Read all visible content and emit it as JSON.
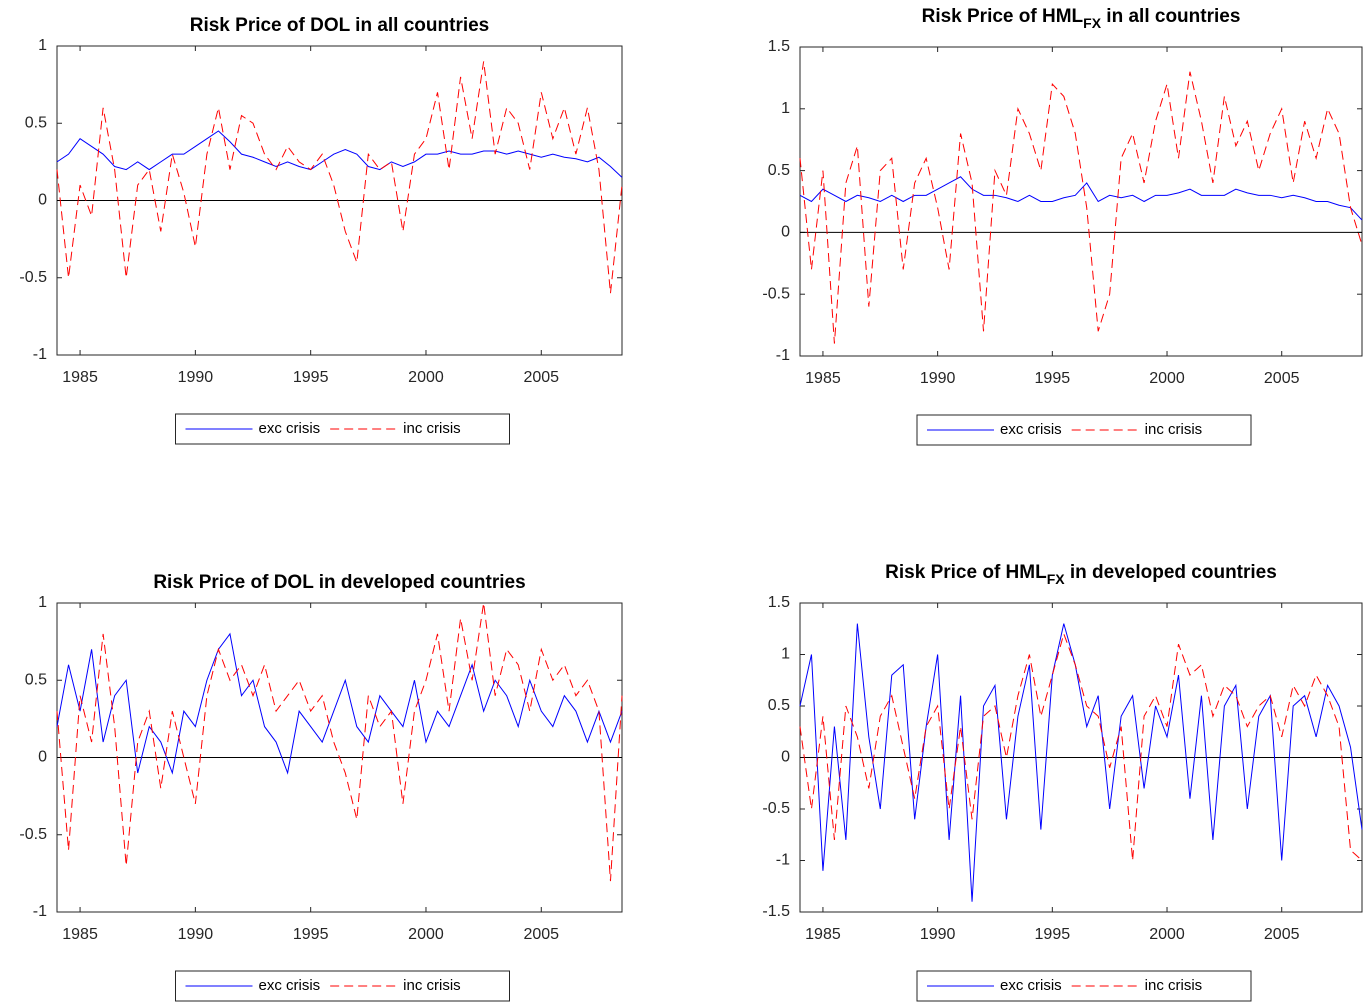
{
  "chart_data": [
    {
      "type": "line",
      "title": "Risk Price of DOL in all countries",
      "x": [
        1984,
        1984.5,
        1985,
        1985.5,
        1986,
        1986.5,
        1987,
        1987.5,
        1988,
        1988.5,
        1989,
        1989.5,
        1990,
        1990.5,
        1991,
        1991.5,
        1992,
        1992.5,
        1993,
        1993.5,
        1994,
        1994.5,
        1995,
        1995.5,
        1996,
        1996.5,
        1997,
        1997.5,
        1998,
        1998.5,
        1999,
        1999.5,
        2000,
        2000.5,
        2001,
        2001.5,
        2002,
        2002.5,
        2003,
        2003.5,
        2004,
        2004.5,
        2005,
        2005.5,
        2006,
        2006.5,
        2007,
        2007.5,
        2008,
        2008.5
      ],
      "xlim": [
        1984,
        2008.5
      ],
      "xticks": [
        1985,
        1990,
        1995,
        2000,
        2005
      ],
      "ylim": [
        -1,
        1
      ],
      "yticks": [
        -1,
        -0.5,
        0,
        0.5,
        1
      ],
      "series": [
        {
          "name": "exc crisis",
          "color": "#0000ff",
          "dash": "solid",
          "values": [
            0.25,
            0.3,
            0.4,
            0.35,
            0.3,
            0.22,
            0.2,
            0.25,
            0.2,
            0.25,
            0.3,
            0.3,
            0.35,
            0.4,
            0.45,
            0.38,
            0.3,
            0.28,
            0.25,
            0.22,
            0.25,
            0.22,
            0.2,
            0.25,
            0.3,
            0.33,
            0.3,
            0.22,
            0.2,
            0.25,
            0.22,
            0.25,
            0.3,
            0.3,
            0.32,
            0.3,
            0.3,
            0.32,
            0.32,
            0.3,
            0.32,
            0.3,
            0.28,
            0.3,
            0.28,
            0.27,
            0.25,
            0.28,
            0.22,
            0.15
          ]
        },
        {
          "name": "inc crisis",
          "color": "#ff0000",
          "dash": "dashed",
          "values": [
            0.2,
            -0.5,
            0.1,
            -0.1,
            0.6,
            0.2,
            -0.5,
            0.1,
            0.2,
            -0.2,
            0.3,
            0.05,
            -0.3,
            0.3,
            0.6,
            0.2,
            0.55,
            0.5,
            0.3,
            0.2,
            0.35,
            0.25,
            0.2,
            0.3,
            0.1,
            -0.2,
            -0.4,
            0.3,
            0.2,
            0.25,
            -0.2,
            0.3,
            0.4,
            0.7,
            0.2,
            0.8,
            0.4,
            0.9,
            0.3,
            0.6,
            0.5,
            0.2,
            0.7,
            0.4,
            0.6,
            0.3,
            0.6,
            0.2,
            -0.6,
            0.1
          ]
        }
      ]
    },
    {
      "type": "line",
      "title": [
        "Risk Price of HML",
        "FX",
        " in all countries"
      ],
      "x": [
        1984,
        1984.5,
        1985,
        1985.5,
        1986,
        1986.5,
        1987,
        1987.5,
        1988,
        1988.5,
        1989,
        1989.5,
        1990,
        1990.5,
        1991,
        1991.5,
        1992,
        1992.5,
        1993,
        1993.5,
        1994,
        1994.5,
        1995,
        1995.5,
        1996,
        1996.5,
        1997,
        1997.5,
        1998,
        1998.5,
        1999,
        1999.5,
        2000,
        2000.5,
        2001,
        2001.5,
        2002,
        2002.5,
        2003,
        2003.5,
        2004,
        2004.5,
        2005,
        2005.5,
        2006,
        2006.5,
        2007,
        2007.5,
        2008,
        2008.5
      ],
      "xlim": [
        1984,
        2008.5
      ],
      "xticks": [
        1985,
        1990,
        1995,
        2000,
        2005
      ],
      "ylim": [
        -1,
        1.5
      ],
      "yticks": [
        -1,
        -0.5,
        0,
        0.5,
        1,
        1.5
      ],
      "series": [
        {
          "name": "exc crisis",
          "color": "#0000ff",
          "dash": "solid",
          "values": [
            0.3,
            0.25,
            0.35,
            0.3,
            0.25,
            0.3,
            0.28,
            0.25,
            0.3,
            0.25,
            0.3,
            0.3,
            0.35,
            0.4,
            0.45,
            0.35,
            0.3,
            0.3,
            0.28,
            0.25,
            0.3,
            0.25,
            0.25,
            0.28,
            0.3,
            0.4,
            0.25,
            0.3,
            0.28,
            0.3,
            0.25,
            0.3,
            0.3,
            0.32,
            0.35,
            0.3,
            0.3,
            0.3,
            0.35,
            0.32,
            0.3,
            0.3,
            0.28,
            0.3,
            0.28,
            0.25,
            0.25,
            0.22,
            0.2,
            0.1
          ]
        },
        {
          "name": "inc crisis",
          "color": "#ff0000",
          "dash": "dashed",
          "values": [
            0.6,
            -0.3,
            0.5,
            -0.9,
            0.4,
            0.7,
            -0.6,
            0.5,
            0.6,
            -0.3,
            0.4,
            0.6,
            0.2,
            -0.3,
            0.8,
            0.4,
            -0.8,
            0.5,
            0.3,
            1.0,
            0.8,
            0.5,
            1.2,
            1.1,
            0.8,
            0.2,
            -0.8,
            -0.5,
            0.6,
            0.8,
            0.4,
            0.9,
            1.2,
            0.6,
            1.3,
            0.9,
            0.4,
            1.1,
            0.7,
            0.9,
            0.5,
            0.8,
            1.0,
            0.4,
            0.9,
            0.6,
            1.0,
            0.8,
            0.2,
            -0.1
          ]
        }
      ]
    },
    {
      "type": "line",
      "title": "Risk Price of DOL in developed countries",
      "x": [
        1984,
        1984.5,
        1985,
        1985.5,
        1986,
        1986.5,
        1987,
        1987.5,
        1988,
        1988.5,
        1989,
        1989.5,
        1990,
        1990.5,
        1991,
        1991.5,
        1992,
        1992.5,
        1993,
        1993.5,
        1994,
        1994.5,
        1995,
        1995.5,
        1996,
        1996.5,
        1997,
        1997.5,
        1998,
        1998.5,
        1999,
        1999.5,
        2000,
        2000.5,
        2001,
        2001.5,
        2002,
        2002.5,
        2003,
        2003.5,
        2004,
        2004.5,
        2005,
        2005.5,
        2006,
        2006.5,
        2007,
        2007.5,
        2008,
        2008.5
      ],
      "xlim": [
        1984,
        2008.5
      ],
      "xticks": [
        1985,
        1990,
        1995,
        2000,
        2005
      ],
      "ylim": [
        -1,
        1
      ],
      "yticks": [
        -1,
        -0.5,
        0,
        0.5,
        1
      ],
      "series": [
        {
          "name": "exc crisis",
          "color": "#0000ff",
          "dash": "solid",
          "values": [
            0.2,
            0.6,
            0.3,
            0.7,
            0.1,
            0.4,
            0.5,
            -0.1,
            0.2,
            0.1,
            -0.1,
            0.3,
            0.2,
            0.5,
            0.7,
            0.8,
            0.4,
            0.5,
            0.2,
            0.1,
            -0.1,
            0.3,
            0.2,
            0.1,
            0.3,
            0.5,
            0.2,
            0.1,
            0.4,
            0.3,
            0.2,
            0.5,
            0.1,
            0.3,
            0.2,
            0.4,
            0.6,
            0.3,
            0.5,
            0.4,
            0.2,
            0.5,
            0.3,
            0.2,
            0.4,
            0.3,
            0.1,
            0.3,
            0.1,
            0.3
          ]
        },
        {
          "name": "inc crisis",
          "color": "#ff0000",
          "dash": "dashed",
          "values": [
            0.3,
            -0.6,
            0.4,
            0.1,
            0.8,
            0.2,
            -0.7,
            0.1,
            0.3,
            -0.2,
            0.3,
            0.0,
            -0.3,
            0.4,
            0.7,
            0.5,
            0.6,
            0.4,
            0.6,
            0.3,
            0.4,
            0.5,
            0.3,
            0.4,
            0.1,
            -0.1,
            -0.4,
            0.4,
            0.2,
            0.3,
            -0.3,
            0.3,
            0.5,
            0.8,
            0.3,
            0.9,
            0.5,
            1.0,
            0.4,
            0.7,
            0.6,
            0.3,
            0.7,
            0.5,
            0.6,
            0.4,
            0.5,
            0.3,
            -0.8,
            0.4
          ]
        }
      ]
    },
    {
      "type": "line",
      "title": [
        "Risk Price of HML",
        "FX",
        " in developed countries"
      ],
      "x": [
        1984,
        1984.5,
        1985,
        1985.5,
        1986,
        1986.5,
        1987,
        1987.5,
        1988,
        1988.5,
        1989,
        1989.5,
        1990,
        1990.5,
        1991,
        1991.5,
        1992,
        1992.5,
        1993,
        1993.5,
        1994,
        1994.5,
        1995,
        1995.5,
        1996,
        1996.5,
        1997,
        1997.5,
        1998,
        1998.5,
        1999,
        1999.5,
        2000,
        2000.5,
        2001,
        2001.5,
        2002,
        2002.5,
        2003,
        2003.5,
        2004,
        2004.5,
        2005,
        2005.5,
        2006,
        2006.5,
        2007,
        2007.5,
        2008,
        2008.5
      ],
      "xlim": [
        1984,
        2008.5
      ],
      "xticks": [
        1985,
        1990,
        1995,
        2000,
        2005
      ],
      "ylim": [
        -1.5,
        1.5
      ],
      "yticks": [
        -1.5,
        -1,
        -0.5,
        0,
        0.5,
        1,
        1.5
      ],
      "series": [
        {
          "name": "exc crisis",
          "color": "#0000ff",
          "dash": "solid",
          "values": [
            0.5,
            1.0,
            -1.1,
            0.3,
            -0.8,
            1.3,
            0.2,
            -0.5,
            0.8,
            0.9,
            -0.6,
            0.3,
            1.0,
            -0.8,
            0.6,
            -1.4,
            0.5,
            0.7,
            -0.6,
            0.4,
            0.9,
            -0.7,
            0.8,
            1.3,
            0.9,
            0.3,
            0.6,
            -0.5,
            0.4,
            0.6,
            -0.3,
            0.5,
            0.2,
            0.8,
            -0.4,
            0.6,
            -0.8,
            0.5,
            0.7,
            -0.5,
            0.4,
            0.6,
            -1.0,
            0.5,
            0.6,
            0.2,
            0.7,
            0.5,
            0.1,
            -0.7
          ]
        },
        {
          "name": "inc crisis",
          "color": "#ff0000",
          "dash": "dashed",
          "values": [
            0.3,
            -0.5,
            0.4,
            -0.8,
            0.5,
            0.2,
            -0.3,
            0.4,
            0.6,
            0.1,
            -0.4,
            0.3,
            0.5,
            -0.5,
            0.3,
            -0.6,
            0.4,
            0.5,
            0.0,
            0.6,
            1.0,
            0.4,
            0.8,
            1.2,
            0.9,
            0.5,
            0.4,
            -0.1,
            0.3,
            -1.0,
            0.4,
            0.6,
            0.3,
            1.1,
            0.8,
            0.9,
            0.4,
            0.7,
            0.6,
            0.3,
            0.5,
            0.6,
            0.2,
            0.7,
            0.5,
            0.8,
            0.6,
            0.3,
            -0.9,
            -1.0
          ]
        }
      ]
    }
  ]
}
